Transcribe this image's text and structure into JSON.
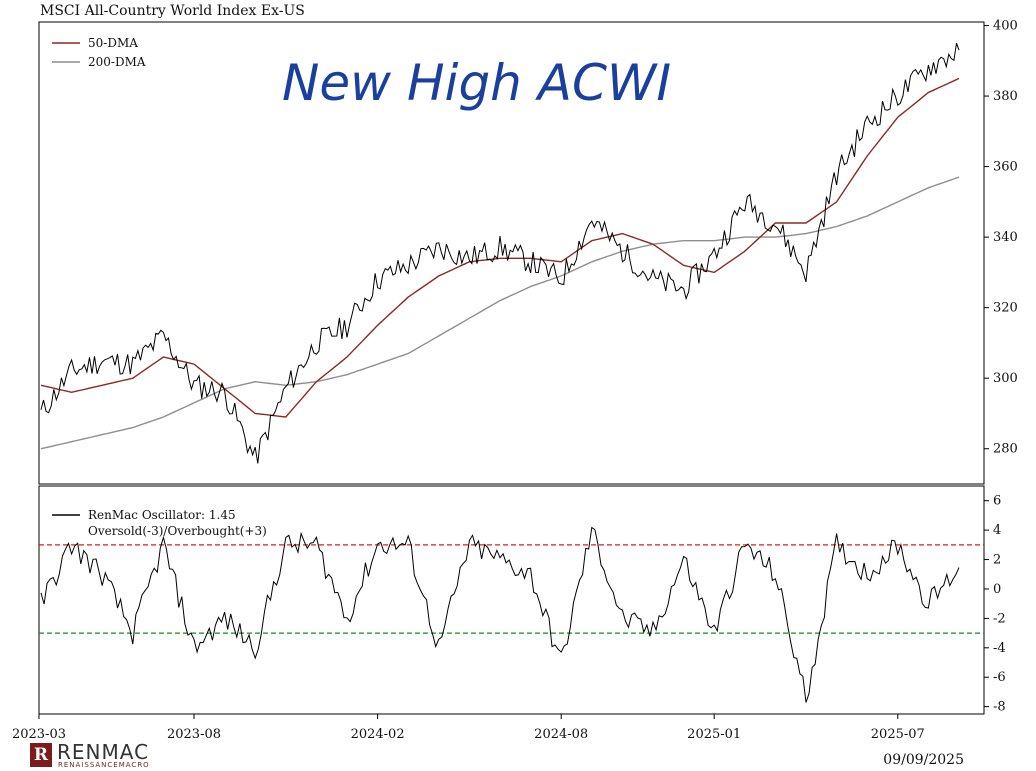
{
  "title": "MSCI All-Country World Index Ex-US",
  "annotation": "New High ACWI",
  "date_stamp": "09/09/2025",
  "logo": {
    "name": "RENMAC",
    "sub": "RENAISSANCEMACRO",
    "mark": "R"
  },
  "colors": {
    "price": "#000000",
    "dma50": "#8b2a22",
    "dma200": "#8e8e8e",
    "osc": "#000000",
    "overbought": "#e41b1b",
    "oversold": "#1a8a1a",
    "annotation": "#1a3f9c"
  },
  "chart_data": [
    {
      "type": "line",
      "title": "MSCI All-Country World Index Ex-US",
      "ylim": [
        270,
        401
      ],
      "yticks": [
        280,
        300,
        320,
        340,
        360,
        380,
        400
      ],
      "legend": {
        "position": "top-left",
        "entries": [
          "50-DMA",
          "200-DMA"
        ]
      },
      "x": [
        "2023-03",
        "2023-04",
        "2023-05",
        "2023-06",
        "2023-07",
        "2023-08",
        "2023-09",
        "2023-10",
        "2023-11",
        "2023-12",
        "2024-01",
        "2024-02",
        "2024-03",
        "2024-04",
        "2024-05",
        "2024-06",
        "2024-07",
        "2024-08",
        "2024-09",
        "2024-10",
        "2024-11",
        "2024-12",
        "2025-01",
        "2025-02",
        "2025-03",
        "2025-04",
        "2025-05",
        "2025-06",
        "2025-07",
        "2025-08",
        "2025-09"
      ],
      "series": [
        {
          "name": "Price",
          "values": [
            290,
            302,
            305,
            304,
            312,
            298,
            296,
            277,
            297,
            310,
            315,
            328,
            332,
            337,
            334,
            337,
            333,
            328,
            345,
            336,
            328,
            325,
            335,
            350,
            344,
            330,
            358,
            372,
            380,
            388,
            393
          ]
        },
        {
          "name": "50-DMA",
          "values": [
            298,
            296,
            298,
            300,
            306,
            304,
            297,
            290,
            289,
            299,
            306,
            315,
            323,
            329,
            333,
            334,
            334,
            333,
            339,
            341,
            338,
            332,
            330,
            336,
            344,
            344,
            350,
            363,
            374,
            381,
            385
          ]
        },
        {
          "name": "200-DMA",
          "values": [
            280,
            282,
            284,
            286,
            289,
            293,
            297,
            299,
            298,
            299,
            301,
            304,
            307,
            312,
            317,
            322,
            326,
            329,
            333,
            336,
            338,
            339,
            339,
            340,
            340,
            341,
            343,
            346,
            350,
            354,
            357
          ]
        }
      ]
    },
    {
      "type": "line",
      "title": "",
      "ylim": [
        -8.5,
        7
      ],
      "yticks": [
        6,
        4,
        2,
        0,
        -2,
        -4,
        -6,
        -8
      ],
      "legend": {
        "position": "top-left",
        "entries": [
          "RenMac Oscillator: 1.45",
          "Oversold(-3)/Overbought(+3)"
        ]
      },
      "thresholds": [
        3,
        -3
      ],
      "current_value": 1.45,
      "x": [
        "2023-03",
        "2023-04",
        "2023-05",
        "2023-06",
        "2023-07",
        "2023-08",
        "2023-09",
        "2023-10",
        "2023-11",
        "2023-12",
        "2024-01",
        "2024-02",
        "2024-03",
        "2024-04",
        "2024-05",
        "2024-06",
        "2024-07",
        "2024-08",
        "2024-09",
        "2024-10",
        "2024-11",
        "2024-12",
        "2025-01",
        "2025-02",
        "2025-03",
        "2025-04",
        "2025-05",
        "2025-06",
        "2025-07",
        "2025-08",
        "2025-09"
      ],
      "series": [
        {
          "name": "RenMac Oscillator",
          "values": [
            -1,
            3,
            1,
            -3,
            3,
            -4,
            -2,
            -4,
            3,
            3,
            -2,
            3,
            3,
            -4,
            3,
            2,
            1,
            -5,
            4,
            -2,
            -3,
            2,
            -3,
            3,
            1,
            -7.5,
            3,
            1,
            3,
            -1,
            1.45
          ]
        }
      ]
    }
  ],
  "x_axis_labels": [
    "2023-03",
    "2023-08",
    "2024-02",
    "2024-08",
    "2025-01",
    "2025-07"
  ]
}
